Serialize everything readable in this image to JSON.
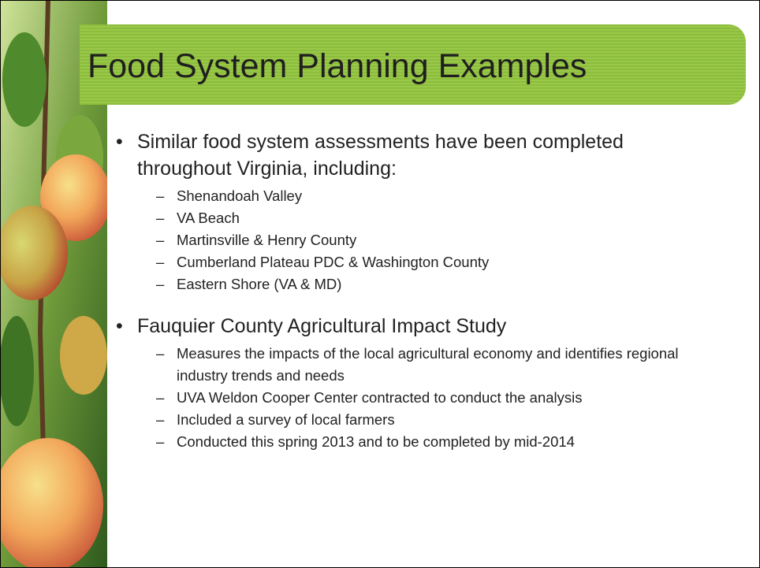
{
  "title": "Food System Planning Examples",
  "bullets": [
    {
      "text": "Similar food system assessments have been completed throughout Virginia, including:",
      "subitems": [
        "Shenandoah Valley",
        "VA Beach",
        "Martinsville & Henry County",
        "Cumberland Plateau PDC & Washington County",
        "Eastern Shore (VA & MD)"
      ]
    },
    {
      "text": "Fauquier County Agricultural Impact Study",
      "subitems": [
        "Measures the impacts of the local agricultural economy and identifies regional industry trends and needs",
        "UVA Weldon Cooper Center contracted to conduct the analysis",
        "Included a survey of local farmers",
        "Conducted this spring 2013 and to be completed by mid-2014"
      ]
    }
  ]
}
